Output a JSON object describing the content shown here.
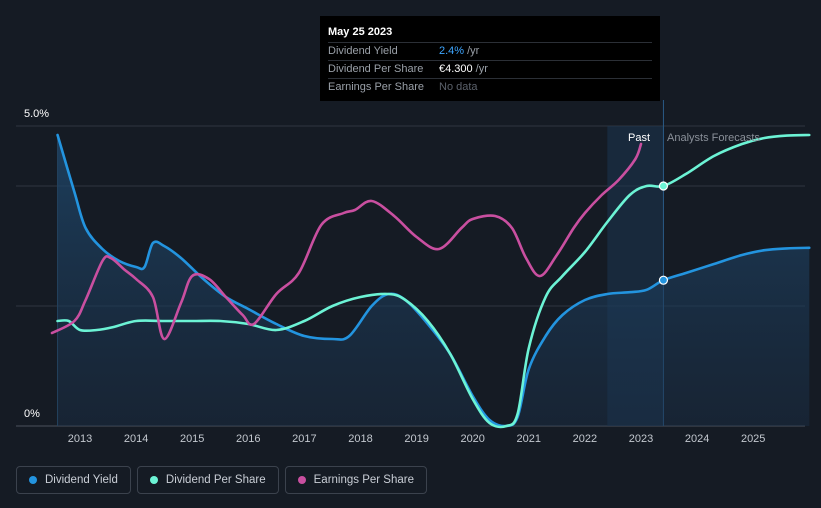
{
  "tooltip": {
    "date": "May 25 2023",
    "rows": [
      {
        "label": "Dividend Yield",
        "value": "2.4%",
        "unit": "/yr"
      },
      {
        "label": "Dividend Per Share",
        "value": "€4.300",
        "unit": "/yr"
      },
      {
        "label": "Earnings Per Share",
        "value": "No data"
      }
    ]
  },
  "legend": [
    {
      "label": "Dividend Yield",
      "color": "#2394df"
    },
    {
      "label": "Dividend Per Share",
      "color": "#6cf3d5"
    },
    {
      "label": "Earnings Per Share",
      "color": "#c94fa0"
    }
  ],
  "chart_data": {
    "type": "line",
    "y_tick_labels": [
      "5.0%",
      "0%"
    ],
    "ylim": [
      0,
      5.0
    ],
    "xlim": [
      2012.5,
      2026
    ],
    "x_ticks": [
      "2013",
      "2014",
      "2015",
      "2016",
      "2017",
      "2018",
      "2019",
      "2020",
      "2021",
      "2022",
      "2023",
      "2024",
      "2025"
    ],
    "past_label": "Past",
    "forecast_label": "Analysts Forecasts",
    "forecast_start": 2023.4,
    "highlight_band": [
      2022.4,
      2023.4
    ],
    "grid": true,
    "series": [
      {
        "name": "Dividend Yield",
        "color": "#2394df",
        "area": true,
        "x": [
          2012.6,
          2012.9,
          2013.1,
          2013.4,
          2013.7,
          2014.0,
          2014.15,
          2014.3,
          2014.5,
          2014.8,
          2015.2,
          2015.6,
          2016.0,
          2016.5,
          2017.0,
          2017.5,
          2017.8,
          2018.2,
          2018.5,
          2018.8,
          2019.2,
          2019.6,
          2020.0,
          2020.3,
          2020.6,
          2020.8,
          2021.0,
          2021.3,
          2021.6,
          2022.0,
          2022.4,
          2022.8,
          2023.1,
          2023.4,
          2023.8,
          2024.3,
          2024.8,
          2025.2,
          2025.6,
          2026.0
        ],
        "y": [
          4.85,
          3.9,
          3.3,
          2.95,
          2.75,
          2.65,
          2.65,
          3.05,
          3.0,
          2.8,
          2.45,
          2.15,
          1.95,
          1.7,
          1.5,
          1.45,
          1.5,
          2.0,
          2.2,
          2.1,
          1.7,
          1.2,
          0.5,
          0.1,
          0.0,
          0.15,
          0.95,
          1.5,
          1.85,
          2.1,
          2.2,
          2.23,
          2.27,
          2.43,
          2.55,
          2.7,
          2.85,
          2.93,
          2.96,
          2.97
        ]
      },
      {
        "name": "Dividend Per Share",
        "color": "#6cf3d5",
        "area": false,
        "x": [
          2012.6,
          2012.8,
          2013.0,
          2013.3,
          2013.6,
          2014.0,
          2014.5,
          2015.0,
          2015.5,
          2016.0,
          2016.5,
          2017.0,
          2017.5,
          2018.0,
          2018.5,
          2018.8,
          2019.2,
          2019.6,
          2020.0,
          2020.3,
          2020.6,
          2020.8,
          2021.0,
          2021.3,
          2021.6,
          2022.0,
          2022.4,
          2022.8,
          2023.1,
          2023.4,
          2023.8,
          2024.3,
          2024.8,
          2025.2,
          2025.6,
          2026.0
        ],
        "y": [
          1.75,
          1.75,
          1.6,
          1.6,
          1.65,
          1.75,
          1.75,
          1.75,
          1.75,
          1.7,
          1.6,
          1.75,
          2.0,
          2.15,
          2.2,
          2.1,
          1.75,
          1.2,
          0.45,
          0.05,
          0.0,
          0.2,
          1.3,
          2.15,
          2.5,
          2.9,
          3.4,
          3.85,
          4.0,
          4.0,
          4.2,
          4.5,
          4.7,
          4.8,
          4.84,
          4.85
        ]
      },
      {
        "name": "Earnings Per Share",
        "color": "#c94fa0",
        "area": false,
        "x": [
          2012.5,
          2012.9,
          2013.1,
          2013.4,
          2013.55,
          2013.8,
          2014.0,
          2014.3,
          2014.5,
          2014.8,
          2015.0,
          2015.3,
          2015.6,
          2015.9,
          2016.1,
          2016.5,
          2016.9,
          2017.3,
          2017.7,
          2017.9,
          2018.2,
          2018.6,
          2019.0,
          2019.4,
          2019.8,
          2020.0,
          2020.4,
          2020.7,
          2020.95,
          2021.2,
          2021.5,
          2021.8,
          2022.0,
          2022.3,
          2022.6,
          2022.9,
          2023.0
        ],
        "y": [
          1.55,
          1.75,
          2.1,
          2.75,
          2.8,
          2.6,
          2.45,
          2.15,
          1.45,
          2.05,
          2.5,
          2.45,
          2.15,
          1.85,
          1.7,
          2.2,
          2.55,
          3.35,
          3.55,
          3.6,
          3.75,
          3.5,
          3.15,
          2.95,
          3.3,
          3.45,
          3.5,
          3.3,
          2.8,
          2.5,
          2.85,
          3.3,
          3.55,
          3.85,
          4.1,
          4.45,
          4.7
        ]
      }
    ],
    "markers": [
      {
        "series": "Dividend Yield",
        "x": 2023.4,
        "y": 2.43
      },
      {
        "series": "Dividend Per Share",
        "x": 2023.4,
        "y": 4.0
      }
    ]
  }
}
